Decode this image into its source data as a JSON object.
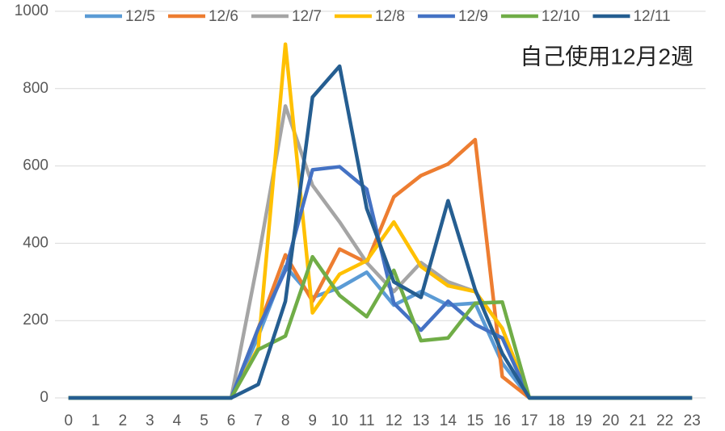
{
  "chart_data": {
    "type": "line",
    "annotation": "自己使用12月2週",
    "categories": [
      "0",
      "1",
      "2",
      "3",
      "4",
      "5",
      "6",
      "7",
      "8",
      "9",
      "10",
      "11",
      "12",
      "13",
      "14",
      "15",
      "16",
      "17",
      "18",
      "19",
      "20",
      "21",
      "22",
      "23"
    ],
    "ylim": [
      0,
      1000
    ],
    "yticks": [
      0,
      200,
      400,
      600,
      800,
      1000
    ],
    "grid": true,
    "legend": "top",
    "series": [
      {
        "name": "12/5",
        "color": "#5B9BD5",
        "values": [
          0,
          0,
          0,
          0,
          0,
          0,
          0,
          160,
          340,
          260,
          285,
          325,
          240,
          275,
          240,
          245,
          90,
          0,
          0,
          0,
          0,
          0,
          0,
          0
        ]
      },
      {
        "name": "12/6",
        "color": "#ED7D31",
        "values": [
          0,
          0,
          0,
          0,
          0,
          0,
          0,
          180,
          370,
          250,
          385,
          350,
          520,
          575,
          605,
          668,
          55,
          0,
          0,
          0,
          0,
          0,
          0,
          0
        ]
      },
      {
        "name": "12/7",
        "color": "#A5A5A5",
        "values": [
          0,
          0,
          0,
          0,
          0,
          0,
          0,
          360,
          755,
          550,
          455,
          350,
          275,
          350,
          300,
          275,
          180,
          0,
          0,
          0,
          0,
          0,
          0,
          0
        ]
      },
      {
        "name": "12/8",
        "color": "#FFC000",
        "values": [
          0,
          0,
          0,
          0,
          0,
          0,
          0,
          130,
          915,
          220,
          320,
          355,
          455,
          340,
          290,
          275,
          180,
          0,
          0,
          0,
          0,
          0,
          0,
          0
        ]
      },
      {
        "name": "12/9",
        "color": "#4472C4",
        "values": [
          0,
          0,
          0,
          0,
          0,
          0,
          0,
          180,
          330,
          590,
          598,
          540,
          245,
          175,
          250,
          190,
          155,
          0,
          0,
          0,
          0,
          0,
          0,
          0
        ]
      },
      {
        "name": "12/10",
        "color": "#70AD47",
        "values": [
          0,
          0,
          0,
          0,
          0,
          0,
          0,
          125,
          160,
          365,
          265,
          210,
          330,
          148,
          155,
          245,
          248,
          0,
          0,
          0,
          0,
          0,
          0,
          0
        ]
      },
      {
        "name": "12/11",
        "color": "#255E91",
        "values": [
          0,
          0,
          0,
          0,
          0,
          0,
          0,
          35,
          250,
          778,
          858,
          490,
          300,
          260,
          510,
          280,
          115,
          0,
          0,
          0,
          0,
          0,
          0,
          0
        ]
      }
    ]
  }
}
